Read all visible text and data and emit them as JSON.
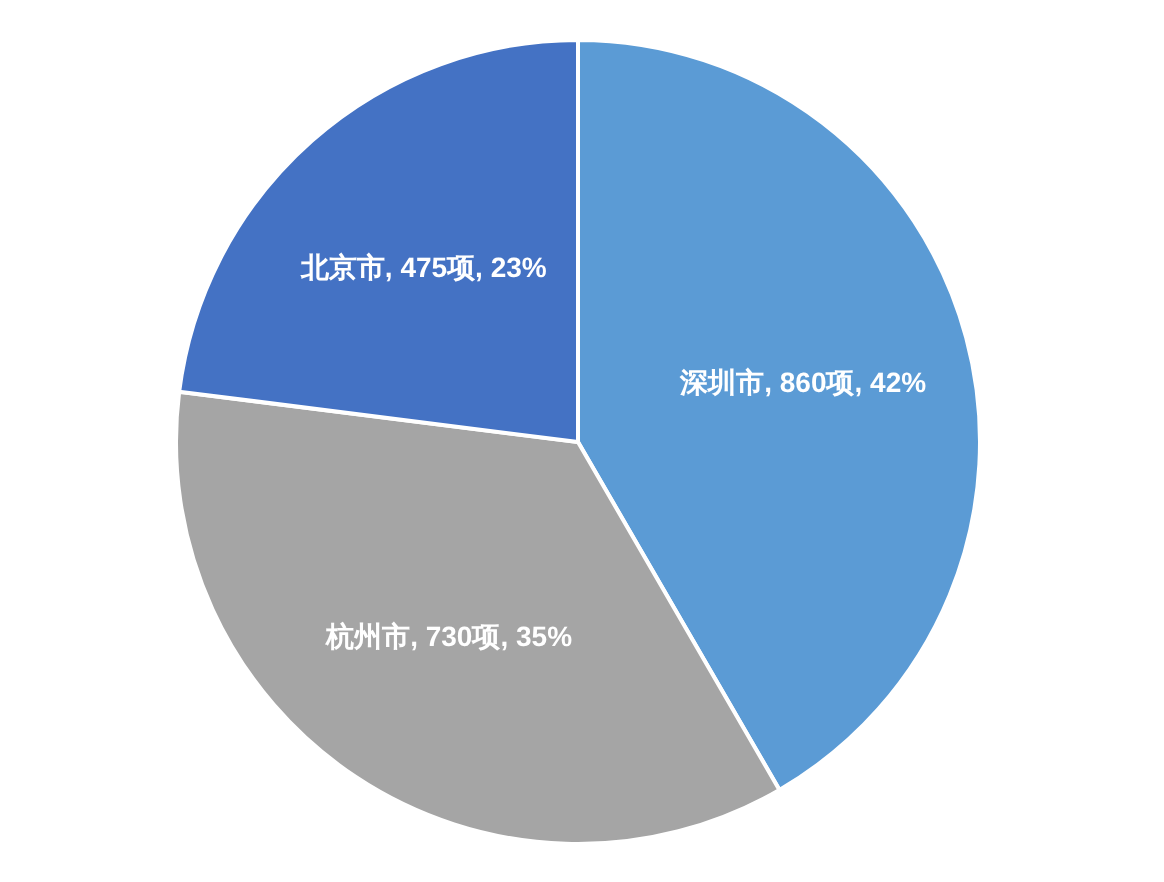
{
  "chart_data": {
    "type": "pie",
    "categories": [
      "深圳市",
      "杭州市",
      "北京市"
    ],
    "values": [
      860,
      730,
      475
    ],
    "colors": [
      "#5b9bd5",
      "#a5a5a5",
      "#4472c4"
    ],
    "value_labels": [
      ", 860项, 42%",
      ", 730项, 35%",
      ", 475项, 23%"
    ]
  }
}
